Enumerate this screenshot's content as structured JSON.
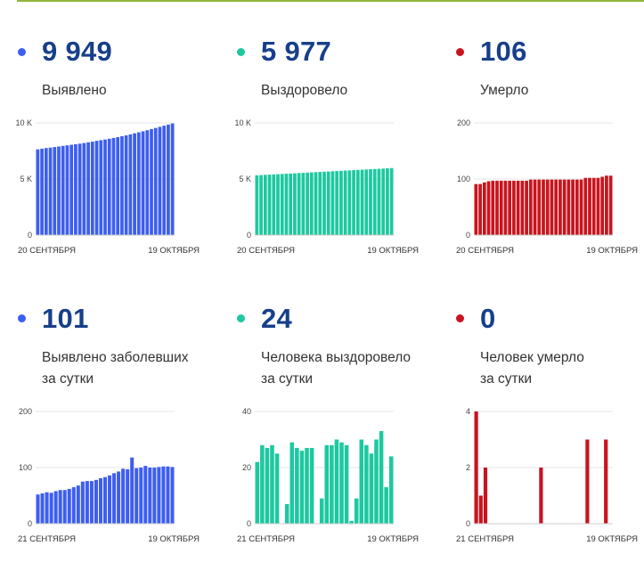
{
  "colors": {
    "blue": "#3d5ef0",
    "green": "#1dc8a0",
    "red": "#c8141e",
    "number": "#173f8a"
  },
  "panels": [
    {
      "value": "9 949",
      "label1": "Выявлено",
      "label2": "",
      "color": "#3d5ef0"
    },
    {
      "value": "5 977",
      "label1": "Выздоровело",
      "label2": "",
      "color": "#1dc8a0"
    },
    {
      "value": "106",
      "label1": "Умерло",
      "label2": "",
      "color": "#c8141e"
    },
    {
      "value": "101",
      "label1": "Выявлено заболевших",
      "label2": "за сутки",
      "color": "#3d5ef0"
    },
    {
      "value": "24",
      "label1": "Человека выздоровело",
      "label2": "за сутки",
      "color": "#1dc8a0"
    },
    {
      "value": "0",
      "label1": "Человек умерло",
      "label2": "за сутки",
      "color": "#c8141e"
    }
  ],
  "chart_data": [
    {
      "type": "bar",
      "color": "#3d5ef0",
      "x_start": "20 СЕНТЯБРЯ",
      "x_end": "19 ОКТЯБРЯ",
      "yticks": [
        "0",
        "5 K",
        "10 K"
      ],
      "ylim": [
        0,
        10000
      ],
      "values": [
        7640,
        7700,
        7760,
        7800,
        7850,
        7900,
        7950,
        8000,
        8050,
        8100,
        8150,
        8210,
        8270,
        8330,
        8400,
        8460,
        8520,
        8590,
        8660,
        8730,
        8810,
        8890,
        8980,
        9070,
        9160,
        9250,
        9350,
        9450,
        9550,
        9650,
        9750,
        9850,
        9949
      ]
    },
    {
      "type": "bar",
      "color": "#1dc8a0",
      "x_start": "20 СЕНТЯБРЯ",
      "x_end": "19 ОКТЯБРЯ",
      "yticks": [
        "0",
        "5 K",
        "10 K"
      ],
      "ylim": [
        0,
        10000
      ],
      "values": [
        5330,
        5350,
        5370,
        5390,
        5410,
        5430,
        5450,
        5470,
        5490,
        5510,
        5530,
        5550,
        5570,
        5590,
        5610,
        5630,
        5650,
        5670,
        5690,
        5710,
        5730,
        5750,
        5770,
        5790,
        5810,
        5830,
        5850,
        5870,
        5890,
        5910,
        5930,
        5950,
        5977
      ]
    },
    {
      "type": "bar",
      "color": "#c8141e",
      "x_start": "20 СЕНТЯБРЯ",
      "x_end": "19 ОКТЯБРЯ",
      "yticks": [
        "0",
        "100",
        "200"
      ],
      "ylim": [
        0,
        200
      ],
      "values": [
        91,
        91,
        94,
        96,
        97,
        97,
        97,
        97,
        97,
        97,
        97,
        97,
        97,
        99,
        99,
        99,
        99,
        99,
        99,
        99,
        99,
        99,
        99,
        99,
        99,
        99,
        102,
        102,
        102,
        102,
        104,
        106,
        106
      ]
    },
    {
      "type": "bar",
      "color": "#3d5ef0",
      "x_start": "21 СЕНТЯБРЯ",
      "x_end": "19 ОКТЯБРЯ",
      "yticks": [
        "0",
        "100",
        "200"
      ],
      "ylim": [
        0,
        200
      ],
      "values": [
        52,
        54,
        56,
        55,
        58,
        60,
        60,
        62,
        65,
        68,
        75,
        76,
        76,
        78,
        81,
        83,
        86,
        90,
        93,
        98,
        97,
        118,
        99,
        100,
        103,
        100,
        100,
        101,
        102,
        102,
        101
      ]
    },
    {
      "type": "bar",
      "color": "#1dc8a0",
      "x_start": "21 СЕНТЯБРЯ",
      "x_end": "19 ОКТЯБРЯ",
      "yticks": [
        "0",
        "20",
        "40"
      ],
      "ylim": [
        0,
        40
      ],
      "values": [
        22,
        28,
        27,
        28,
        25,
        0,
        7,
        29,
        27,
        26,
        27,
        27,
        0,
        9,
        28,
        28,
        30,
        29,
        28,
        1,
        9,
        30,
        28,
        25,
        30,
        33,
        13,
        24
      ]
    },
    {
      "type": "bar",
      "color": "#c8141e",
      "x_start": "21 СЕНТЯБРЯ",
      "x_end": "19 ОКТЯБРЯ",
      "yticks": [
        "0",
        "2",
        "4"
      ],
      "ylim": [
        0,
        4
      ],
      "values": [
        4,
        1,
        2,
        0,
        0,
        0,
        0,
        0,
        0,
        0,
        0,
        0,
        0,
        0,
        2,
        0,
        0,
        0,
        0,
        0,
        0,
        0,
        0,
        0,
        3,
        0,
        0,
        0,
        3,
        0
      ]
    }
  ]
}
